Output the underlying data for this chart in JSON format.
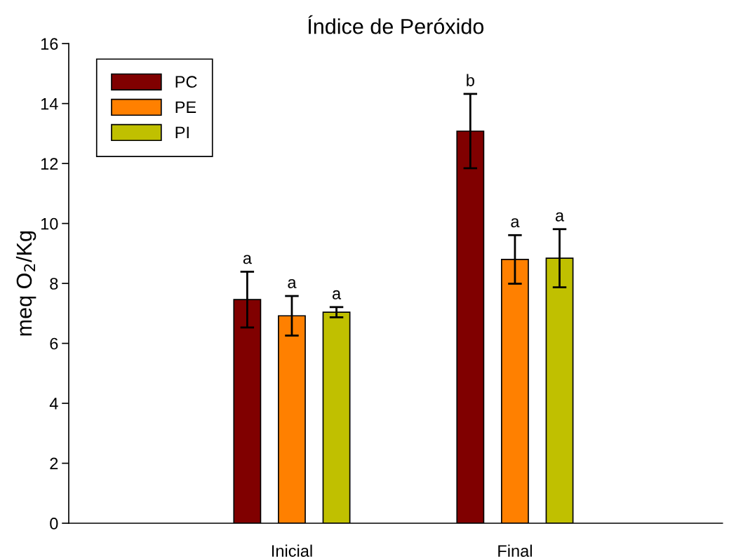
{
  "chart_data": {
    "type": "bar",
    "title": "Índice de Peróxido",
    "ylabel": "meq O$_{2}$/Kg",
    "categories": [
      "Inicial",
      "Final"
    ],
    "series": [
      {
        "name": "PC",
        "color": "#800000",
        "values": [
          7.46,
          13.08
        ],
        "errors": [
          0.93,
          1.24
        ],
        "value_labels": [
          "a",
          "b"
        ]
      },
      {
        "name": "PE",
        "color": "#ff8000",
        "values": [
          6.92,
          8.8
        ],
        "errors": [
          0.66,
          0.81
        ],
        "value_labels": [
          "a",
          "a"
        ]
      },
      {
        "name": "PI",
        "color": "#c0c000",
        "values": [
          7.04,
          8.84
        ],
        "errors": [
          0.17,
          0.97
        ],
        "value_labels": [
          "a",
          "a"
        ]
      }
    ],
    "ylim": [
      0,
      16
    ],
    "yticks": [
      0,
      2,
      4,
      6,
      8,
      10,
      12,
      14,
      16
    ],
    "grid": false,
    "legend": "top left"
  }
}
